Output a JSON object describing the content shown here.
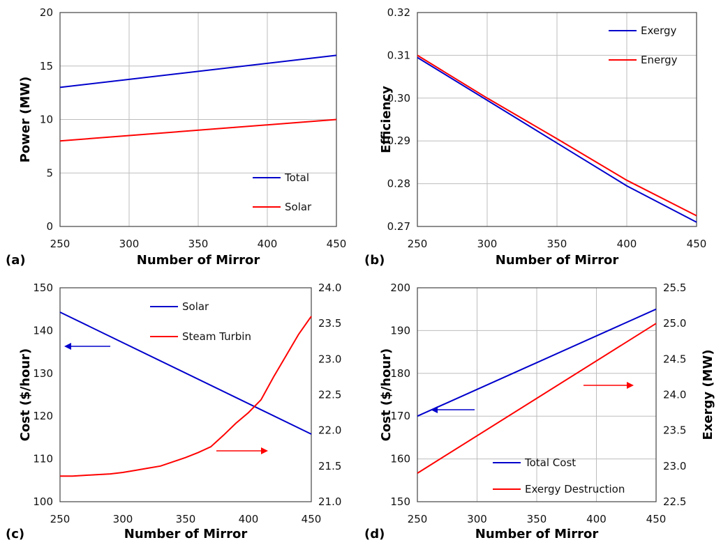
{
  "chart_data": [
    {
      "panel": "(a)",
      "type": "line",
      "xlabel": "Number of Mirror",
      "ylabel": "Power (MW)",
      "xlim": [
        250,
        450
      ],
      "ylim": [
        0,
        20
      ],
      "xticks": [
        250,
        300,
        350,
        400,
        450
      ],
      "yticks": [
        0,
        5,
        10,
        15,
        20
      ],
      "grid": true,
      "legend_position": "bottom-right",
      "series": [
        {
          "name": "Total",
          "color": "#0000CC",
          "x": [
            250,
            450
          ],
          "y": [
            13,
            16
          ]
        },
        {
          "name": "Solar",
          "color": "#FF0000",
          "x": [
            250,
            450
          ],
          "y": [
            8,
            10
          ]
        }
      ]
    },
    {
      "panel": "(b)",
      "type": "line",
      "xlabel": "Number of Mirror",
      "ylabel": "Efficiency",
      "xlim": [
        250,
        450
      ],
      "ylim": [
        0.27,
        0.32
      ],
      "xticks": [
        250,
        300,
        350,
        400,
        450
      ],
      "yticks": [
        "0.27",
        "0.28",
        "0.29",
        "0.30",
        "0.31",
        "0.32"
      ],
      "grid": true,
      "legend_position": "top-right",
      "series": [
        {
          "name": "Exergy",
          "color": "#0000CC",
          "x": [
            250,
            300,
            350,
            400,
            450
          ],
          "y": [
            0.3095,
            0.2995,
            0.2895,
            0.2795,
            0.271
          ]
        },
        {
          "name": "Energy",
          "color": "#FF0000",
          "x": [
            250,
            300,
            350,
            400,
            450
          ],
          "y": [
            0.31,
            0.3,
            0.2905,
            0.2808,
            0.2725
          ]
        }
      ]
    },
    {
      "panel": "(c)",
      "type": "line",
      "xlabel": "Number of Mirror",
      "ylabel": "Cost ($/hour)",
      "xlim": [
        250,
        450
      ],
      "ylim": [
        100,
        150
      ],
      "y2lim": [
        21.0,
        24.0
      ],
      "xticks": [
        250,
        300,
        350,
        400,
        450
      ],
      "yticks": [
        100,
        110,
        120,
        130,
        140,
        150
      ],
      "y2ticks": [
        "21.0",
        "21.5",
        "22.0",
        "22.5",
        "23.0",
        "23.5",
        "24.0"
      ],
      "grid": false,
      "legend_position": "top-right",
      "series": [
        {
          "name": "Solar",
          "color": "#0000CC",
          "axis": "left",
          "x": [
            250,
            450
          ],
          "y": [
            144.3,
            115.8
          ]
        },
        {
          "name": "Steam Turbin",
          "color": "#FF0000",
          "axis": "right",
          "x": [
            250,
            260,
            270,
            280,
            290,
            300,
            310,
            320,
            330,
            340,
            350,
            360,
            370,
            380,
            390,
            400,
            410,
            420,
            430,
            440,
            450
          ],
          "y": [
            21.36,
            21.36,
            21.37,
            21.38,
            21.39,
            21.41,
            21.44,
            21.47,
            21.5,
            21.56,
            21.62,
            21.69,
            21.77,
            21.93,
            22.1,
            22.25,
            22.43,
            22.75,
            23.05,
            23.35,
            23.6
          ]
        }
      ],
      "arrows": [
        {
          "direction": "left",
          "color": "#0000CC"
        },
        {
          "direction": "right",
          "color": "#FF0000"
        }
      ]
    },
    {
      "panel": "(d)",
      "type": "line",
      "xlabel": "Number of Mirror",
      "ylabel": "Cost ($/hour)",
      "y2label": "Exergy (MW)",
      "xlim": [
        250,
        450
      ],
      "ylim": [
        150,
        200
      ],
      "y2lim": [
        22.5,
        25.5
      ],
      "xticks": [
        250,
        300,
        350,
        400,
        450
      ],
      "yticks": [
        150,
        160,
        170,
        180,
        190,
        200
      ],
      "y2ticks": [
        "22.5",
        "23.0",
        "23.5",
        "24.0",
        "24.5",
        "25.0",
        "25.5"
      ],
      "grid": true,
      "legend_position": "bottom-right",
      "series": [
        {
          "name": "Total Cost",
          "color": "#0000CC",
          "axis": "left",
          "x": [
            250,
            450
          ],
          "y": [
            170,
            195
          ]
        },
        {
          "name": "Exergy Destruction",
          "color": "#FF0000",
          "axis": "right",
          "x": [
            250,
            450
          ],
          "y": [
            22.9,
            25.0
          ]
        }
      ],
      "arrows": [
        {
          "direction": "left",
          "color": "#0000CC"
        },
        {
          "direction": "right",
          "color": "#FF0000"
        }
      ]
    }
  ]
}
